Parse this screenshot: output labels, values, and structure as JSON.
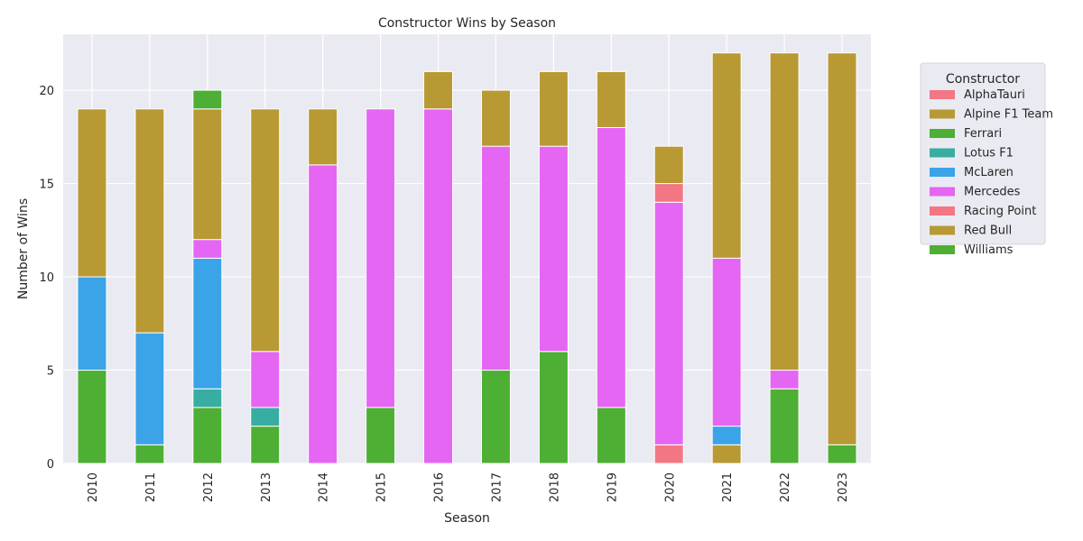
{
  "chart_data": {
    "type": "bar",
    "stacked": true,
    "title": "Constructor Wins by Season",
    "xlabel": "Season",
    "ylabel": "Number of Wins",
    "ylim": [
      0,
      23
    ],
    "yticks": [
      0,
      5,
      10,
      15,
      20
    ],
    "grid": true,
    "legend": {
      "title": "Constructor",
      "placement": "outside-top-right"
    },
    "categories": [
      "2010",
      "2011",
      "2012",
      "2013",
      "2014",
      "2015",
      "2016",
      "2017",
      "2018",
      "2019",
      "2020",
      "2021",
      "2022",
      "2023"
    ],
    "series": [
      {
        "name": "AlphaTauri",
        "color": "#f37684",
        "values": [
          0,
          0,
          0,
          0,
          0,
          0,
          0,
          0,
          0,
          0,
          1,
          0,
          0,
          0
        ]
      },
      {
        "name": "Alpine F1 Team",
        "color": "#b89934",
        "values": [
          0,
          0,
          0,
          0,
          0,
          0,
          0,
          0,
          0,
          0,
          0,
          1,
          0,
          0
        ]
      },
      {
        "name": "Ferrari",
        "color": "#4daf33",
        "values": [
          5,
          1,
          3,
          2,
          0,
          3,
          0,
          5,
          6,
          3,
          0,
          0,
          4,
          1
        ]
      },
      {
        "name": "Lotus F1",
        "color": "#38ada1",
        "values": [
          0,
          0,
          1,
          1,
          0,
          0,
          0,
          0,
          0,
          0,
          0,
          0,
          0,
          0
        ]
      },
      {
        "name": "McLaren",
        "color": "#3ba3e8",
        "values": [
          5,
          6,
          7,
          0,
          0,
          0,
          0,
          0,
          0,
          0,
          0,
          1,
          0,
          0
        ]
      },
      {
        "name": "Mercedes",
        "color": "#e466f2",
        "values": [
          0,
          0,
          1,
          3,
          16,
          16,
          19,
          12,
          11,
          15,
          13,
          9,
          1,
          0
        ]
      },
      {
        "name": "Racing Point",
        "color": "#f37684",
        "values": [
          0,
          0,
          0,
          0,
          0,
          0,
          0,
          0,
          0,
          0,
          1,
          0,
          0,
          0
        ]
      },
      {
        "name": "Red Bull",
        "color": "#b89934",
        "values": [
          9,
          12,
          7,
          13,
          3,
          0,
          2,
          3,
          4,
          3,
          2,
          11,
          17,
          21
        ]
      },
      {
        "name": "Williams",
        "color": "#4daf33",
        "values": [
          0,
          0,
          1,
          0,
          0,
          0,
          0,
          0,
          0,
          0,
          0,
          0,
          0,
          0
        ]
      }
    ]
  }
}
